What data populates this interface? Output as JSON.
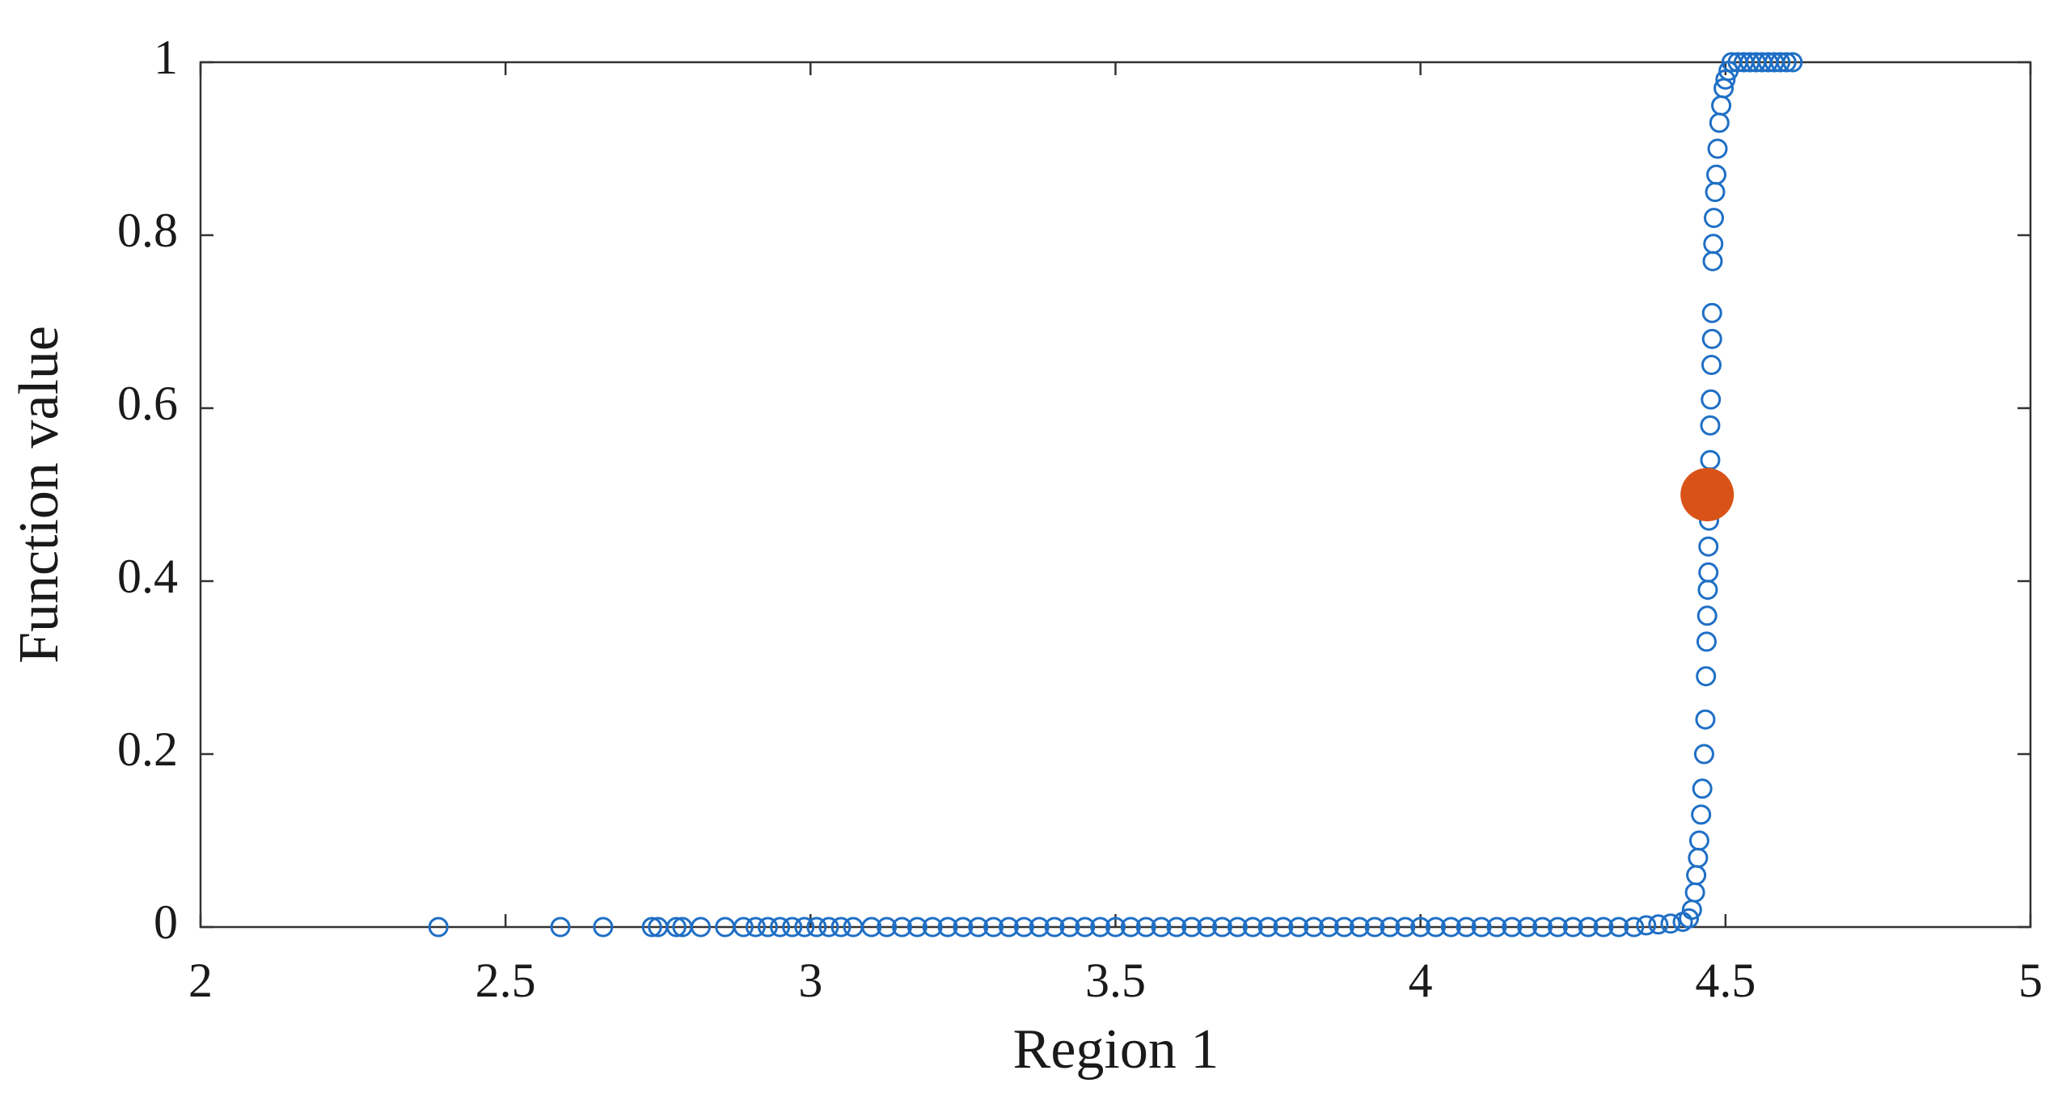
{
  "chart_data": {
    "type": "scatter",
    "x_label": "Region 1",
    "y_label": "Function value",
    "xlim": [
      2,
      5
    ],
    "ylim": [
      0,
      1
    ],
    "xticks": [
      2,
      2.5,
      3,
      3.5,
      4,
      4.5,
      5
    ],
    "yticks": [
      0,
      0.2,
      0.4,
      0.6,
      0.8,
      1
    ],
    "grid": false,
    "series": [
      {
        "color": "#1f6fc5",
        "marker": "open",
        "x": [
          2.39,
          2.59,
          2.66,
          2.74,
          2.75,
          2.78,
          2.79,
          2.82,
          2.86,
          2.89,
          2.91,
          2.93,
          2.95,
          2.97,
          2.99,
          3.01,
          3.03,
          3.05,
          3.07,
          3.1,
          3.125,
          3.15,
          3.175,
          3.2,
          3.225,
          3.25,
          3.275,
          3.3,
          3.325,
          3.35,
          3.375,
          3.4,
          3.425,
          3.45,
          3.475,
          3.5,
          3.525,
          3.55,
          3.575,
          3.6,
          3.625,
          3.65,
          3.675,
          3.7,
          3.725,
          3.75,
          3.775,
          3.8,
          3.825,
          3.85,
          3.875,
          3.9,
          3.925,
          3.95,
          3.975,
          4,
          4.025,
          4.05,
          4.075,
          4.1,
          4.125,
          4.15,
          4.175,
          4.2,
          4.225,
          4.25,
          4.275,
          4.3,
          4.325,
          4.35,
          4.37,
          4.39,
          4.41,
          4.43,
          4.44,
          4.445,
          4.45,
          4.452,
          4.455,
          4.457,
          4.46,
          4.462,
          4.465,
          4.467,
          4.468,
          4.469,
          4.47,
          4.471,
          4.472,
          4.472,
          4.473,
          4.474,
          4.475,
          4.475,
          4.476,
          4.477,
          4.478,
          4.478,
          4.479,
          4.48,
          4.481,
          4.483,
          4.485,
          4.487,
          4.49,
          4.493,
          4.497,
          4.5,
          4.505,
          4.51,
          4.52,
          4.53,
          4.54,
          4.55,
          4.56,
          4.57,
          4.58,
          4.59,
          4.6,
          4.61
        ],
        "values": [
          0,
          0,
          0,
          0,
          0,
          0,
          0,
          0,
          0,
          0,
          0,
          0,
          0,
          0,
          0,
          0,
          0,
          0,
          0,
          0,
          0,
          0,
          0,
          0,
          0,
          0,
          0,
          0,
          0,
          0,
          0,
          0,
          0,
          0,
          0,
          0,
          0,
          0,
          0,
          0,
          0,
          0,
          0,
          0,
          0,
          0,
          0,
          0,
          0,
          0,
          0,
          0,
          0,
          0,
          0,
          0,
          0,
          0,
          0,
          0,
          0,
          0,
          0,
          0,
          0,
          0,
          0,
          0,
          0,
          0,
          0.002,
          0.003,
          0.004,
          0.006,
          0.01,
          0.02,
          0.04,
          0.06,
          0.08,
          0.1,
          0.13,
          0.16,
          0.2,
          0.24,
          0.29,
          0.33,
          0.36,
          0.39,
          0.41,
          0.44,
          0.47,
          0.52,
          0.54,
          0.58,
          0.61,
          0.65,
          0.68,
          0.71,
          0.77,
          0.79,
          0.82,
          0.85,
          0.87,
          0.9,
          0.93,
          0.95,
          0.97,
          0.98,
          0.99,
          1,
          1,
          1,
          1,
          1,
          1,
          1,
          1,
          1,
          1,
          1
        ]
      },
      {
        "color": "#d95319",
        "marker": "filled",
        "x": [
          4.47
        ],
        "values": [
          0.5
        ]
      }
    ]
  }
}
